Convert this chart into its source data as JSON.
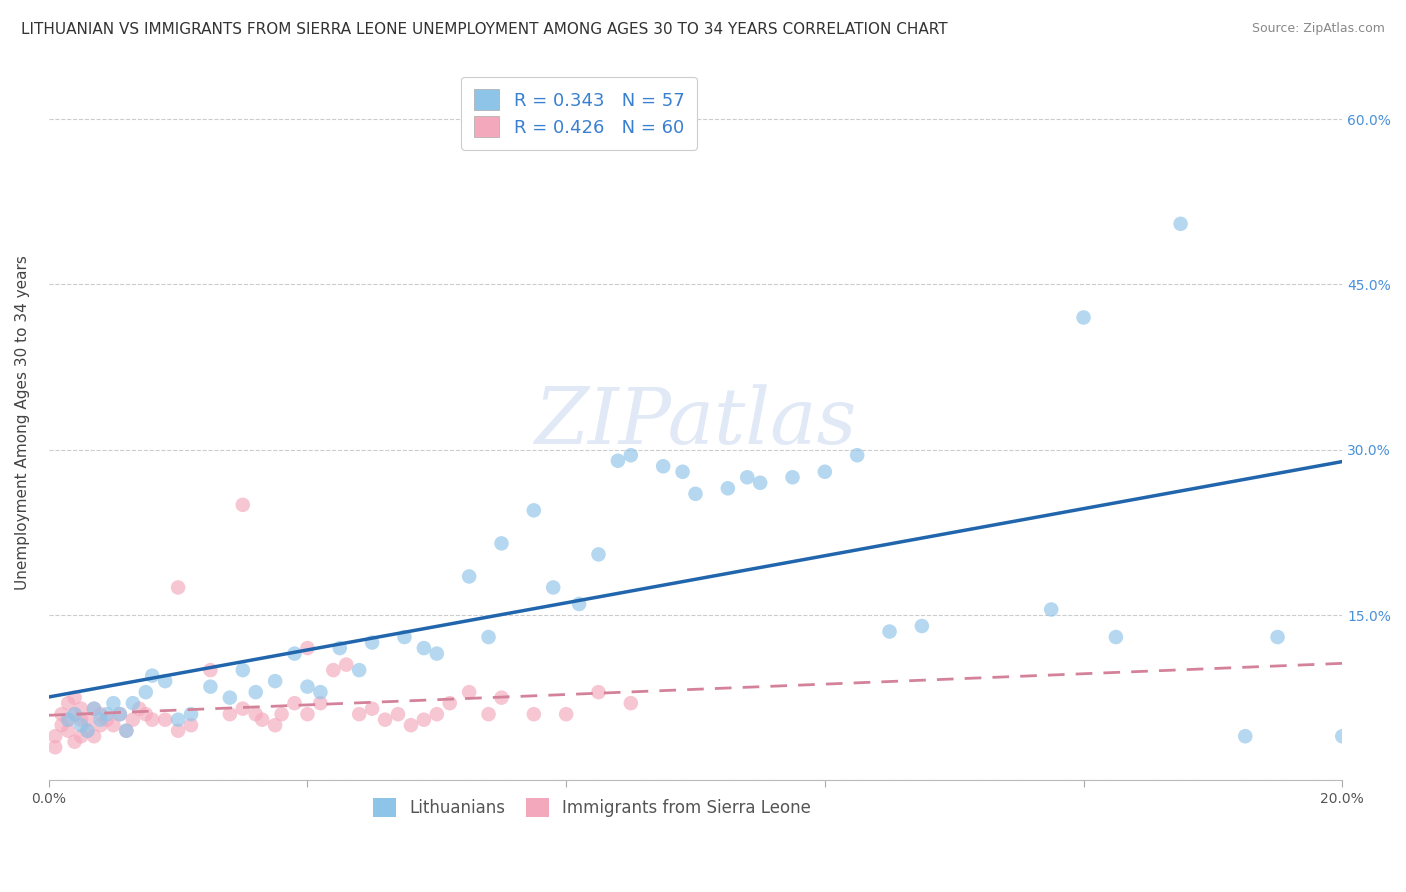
{
  "title": "LITHUANIAN VS IMMIGRANTS FROM SIERRA LEONE UNEMPLOYMENT AMONG AGES 30 TO 34 YEARS CORRELATION CHART",
  "source": "Source: ZipAtlas.com",
  "ylabel": "Unemployment Among Ages 30 to 34 years",
  "xlim": [
    0.0,
    0.2
  ],
  "ylim": [
    0.0,
    0.65
  ],
  "x_ticks": [
    0.0,
    0.04,
    0.08,
    0.12,
    0.16,
    0.2
  ],
  "x_tick_labels": [
    "0.0%",
    "",
    "",
    "",
    "",
    "20.0%"
  ],
  "y_ticks": [
    0.0,
    0.15,
    0.3,
    0.45,
    0.6
  ],
  "y_tick_labels_right": [
    "",
    "15.0%",
    "30.0%",
    "45.0%",
    "60.0%"
  ],
  "legend_r1": "R = 0.343",
  "legend_n1": "N = 57",
  "legend_r2": "R = 0.426",
  "legend_n2": "N = 60",
  "color_blue": "#8ec4e8",
  "color_pink": "#f4a8bc",
  "line_blue": "#2166ac",
  "line_pink": "#d4829a",
  "watermark": "ZIPatlas",
  "background_color": "#ffffff",
  "grid_color": "#cccccc",
  "label1": "Lithuanians",
  "label2": "Immigrants from Sierra Leone",
  "blue_scatter_x": [
    0.003,
    0.004,
    0.005,
    0.006,
    0.007,
    0.008,
    0.009,
    0.01,
    0.011,
    0.012,
    0.013,
    0.015,
    0.016,
    0.018,
    0.02,
    0.022,
    0.025,
    0.028,
    0.03,
    0.032,
    0.035,
    0.038,
    0.04,
    0.042,
    0.045,
    0.048,
    0.05,
    0.055,
    0.058,
    0.06,
    0.065,
    0.068,
    0.07,
    0.075,
    0.078,
    0.082,
    0.085,
    0.088,
    0.09,
    0.095,
    0.098,
    0.1,
    0.105,
    0.108,
    0.11,
    0.115,
    0.12,
    0.125,
    0.13,
    0.135,
    0.155,
    0.16,
    0.165,
    0.175,
    0.185,
    0.19,
    0.2
  ],
  "blue_scatter_y": [
    0.055,
    0.06,
    0.05,
    0.045,
    0.065,
    0.055,
    0.06,
    0.07,
    0.06,
    0.045,
    0.07,
    0.08,
    0.095,
    0.09,
    0.055,
    0.06,
    0.085,
    0.075,
    0.1,
    0.08,
    0.09,
    0.115,
    0.085,
    0.08,
    0.12,
    0.1,
    0.125,
    0.13,
    0.12,
    0.115,
    0.185,
    0.13,
    0.215,
    0.245,
    0.175,
    0.16,
    0.205,
    0.29,
    0.295,
    0.285,
    0.28,
    0.26,
    0.265,
    0.275,
    0.27,
    0.275,
    0.28,
    0.295,
    0.135,
    0.14,
    0.155,
    0.42,
    0.13,
    0.505,
    0.04,
    0.13,
    0.04
  ],
  "pink_scatter_x": [
    0.001,
    0.001,
    0.002,
    0.002,
    0.003,
    0.003,
    0.003,
    0.004,
    0.004,
    0.004,
    0.005,
    0.005,
    0.005,
    0.006,
    0.006,
    0.007,
    0.007,
    0.008,
    0.008,
    0.009,
    0.01,
    0.011,
    0.012,
    0.013,
    0.014,
    0.015,
    0.016,
    0.018,
    0.02,
    0.022,
    0.025,
    0.028,
    0.03,
    0.032,
    0.033,
    0.035,
    0.036,
    0.038,
    0.04,
    0.042,
    0.044,
    0.046,
    0.048,
    0.05,
    0.052,
    0.054,
    0.056,
    0.058,
    0.06,
    0.062,
    0.065,
    0.068,
    0.07,
    0.075,
    0.08,
    0.085,
    0.09,
    0.04,
    0.03,
    0.02
  ],
  "pink_scatter_y": [
    0.03,
    0.04,
    0.05,
    0.06,
    0.045,
    0.055,
    0.07,
    0.035,
    0.06,
    0.075,
    0.04,
    0.055,
    0.065,
    0.045,
    0.055,
    0.04,
    0.065,
    0.05,
    0.06,
    0.055,
    0.05,
    0.06,
    0.045,
    0.055,
    0.065,
    0.06,
    0.055,
    0.055,
    0.045,
    0.05,
    0.1,
    0.06,
    0.065,
    0.06,
    0.055,
    0.05,
    0.06,
    0.07,
    0.06,
    0.07,
    0.1,
    0.105,
    0.06,
    0.065,
    0.055,
    0.06,
    0.05,
    0.055,
    0.06,
    0.07,
    0.08,
    0.06,
    0.075,
    0.06,
    0.06,
    0.08,
    0.07,
    0.12,
    0.25,
    0.175
  ],
  "title_fontsize": 11,
  "axis_label_fontsize": 11,
  "tick_fontsize": 10,
  "legend_fontsize": 13
}
